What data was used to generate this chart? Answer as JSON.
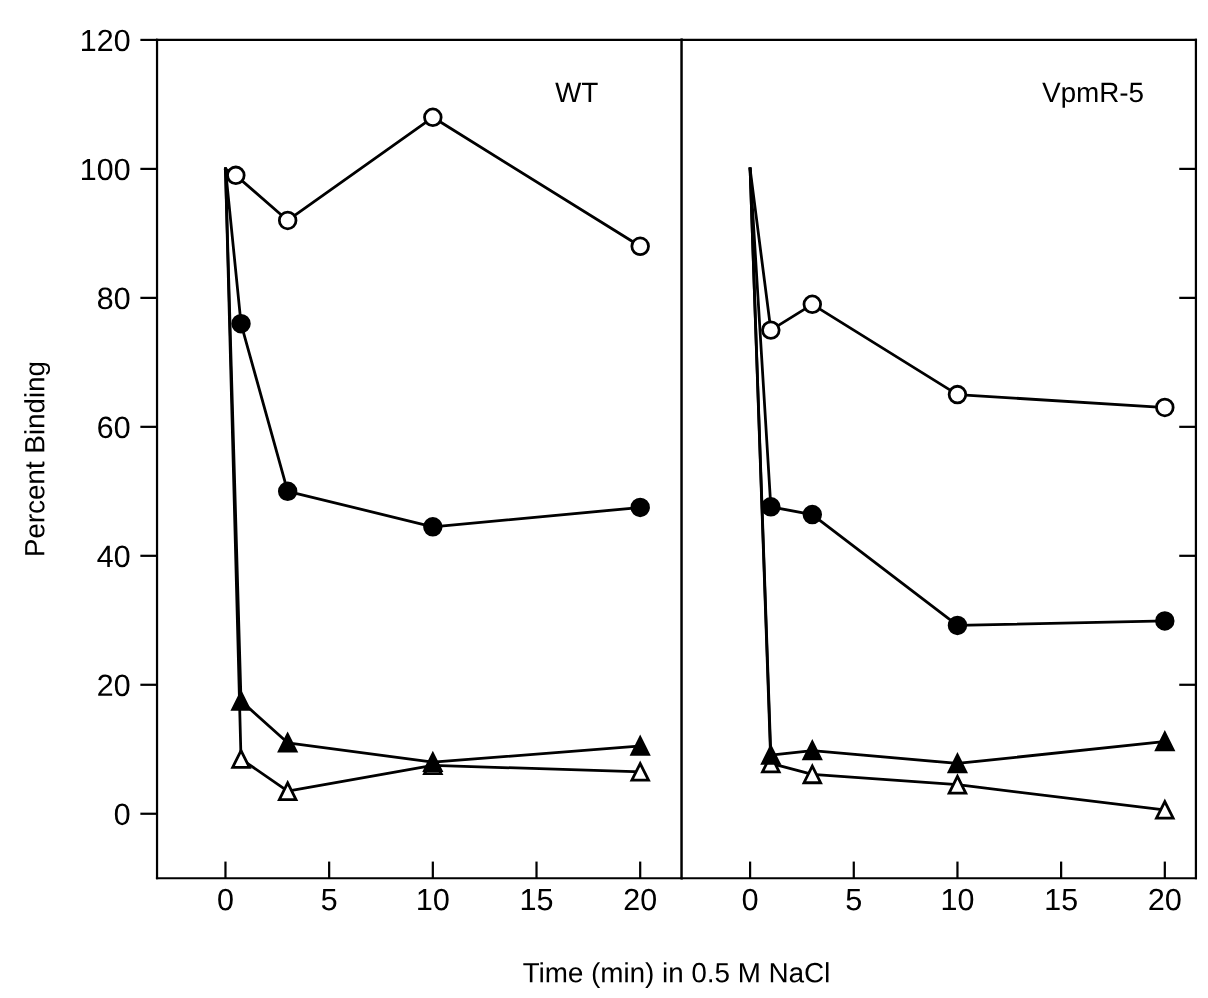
{
  "chart_data": [
    {
      "type": "line",
      "title": "WT",
      "xlabel": "Time (min) in 0.5 M NaCl",
      "ylabel": "Percent Binding",
      "xlim": [
        -3.3,
        22
      ],
      "ylim": [
        -10,
        120
      ],
      "xticks": [
        0,
        5,
        10,
        15,
        20
      ],
      "yticks": [
        0,
        20,
        40,
        60,
        80,
        100,
        120
      ],
      "grid": false,
      "legend": false,
      "series": [
        {
          "color": "#000000",
          "marker": "circle",
          "x": [
            0,
            0.5,
            3,
            10,
            20
          ],
          "values": [
            100,
            99,
            92,
            108,
            88
          ]
        },
        {
          "color": "#000000",
          "marker": "circle",
          "x": [
            0,
            0.75,
            3,
            10,
            20
          ],
          "values": [
            100,
            76,
            50,
            44.5,
            47.5
          ]
        },
        {
          "color": "#000000",
          "marker": "triangle",
          "x": [
            0,
            0.75,
            3,
            10,
            20
          ],
          "values": [
            100,
            17.5,
            11,
            8,
            10.5
          ]
        },
        {
          "color": "#000000",
          "marker": "triangle",
          "x": [
            0,
            0.75,
            3,
            10,
            20
          ],
          "values": [
            100,
            8.5,
            3.5,
            7.5,
            6.5
          ]
        }
      ]
    },
    {
      "type": "line",
      "title": "VpmR-5",
      "xlim": [
        -3.3,
        21.5
      ],
      "ylim": [
        -10,
        120
      ],
      "xticks": [
        0,
        5,
        10,
        15,
        20
      ],
      "yticks": [
        {
          "value": 20,
          "label": null
        },
        {
          "value": 40,
          "label": null
        },
        {
          "value": 60,
          "label": null
        },
        {
          "value": 80,
          "label": null
        },
        {
          "value": 100,
          "label": null
        }
      ],
      "tick_labels": "x",
      "grid": false,
      "legend": false,
      "series": [
        {
          "color": "#000000",
          "marker": "circle",
          "x": [
            0,
            1,
            3,
            10,
            20
          ],
          "values": [
            100,
            75,
            79,
            65,
            63
          ]
        },
        {
          "color": "#000000",
          "marker": "circle",
          "x": [
            0,
            1,
            3,
            10,
            20
          ],
          "values": [
            100,
            47.6,
            46.4,
            29.2,
            29.9
          ]
        },
        {
          "color": "#000000",
          "marker": "triangle",
          "x": [
            0,
            1,
            3,
            10,
            20
          ],
          "values": [
            100,
            9.1,
            9.8,
            7.8,
            11.2
          ]
        },
        {
          "color": "#000000",
          "marker": "triangle",
          "x": [
            0,
            1,
            3,
            10,
            20
          ],
          "values": [
            100,
            7.8,
            6.1,
            4.5,
            0.6
          ]
        }
      ]
    }
  ]
}
